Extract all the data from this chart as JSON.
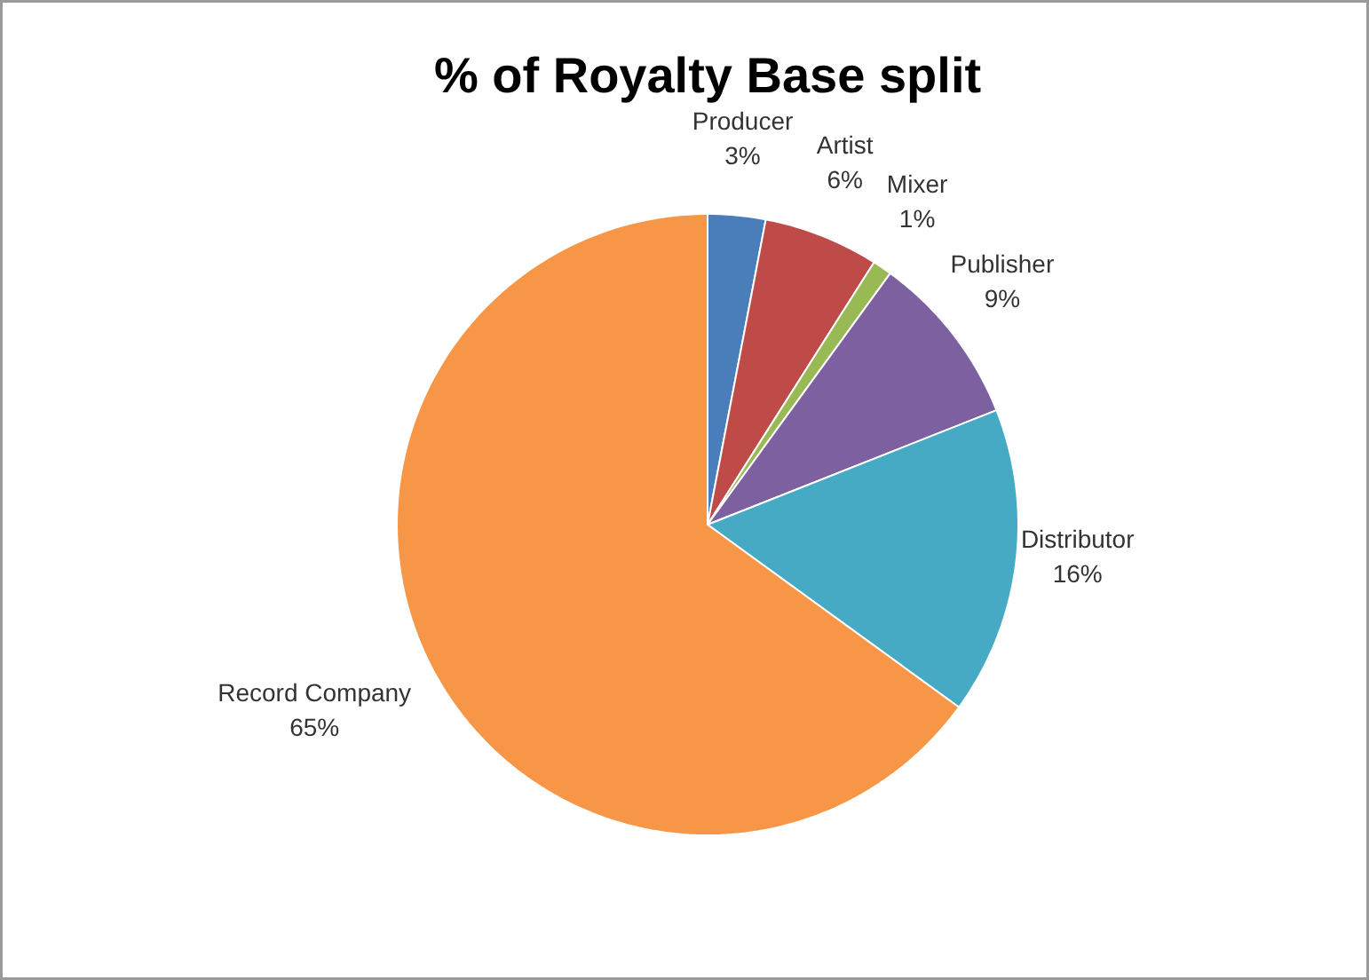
{
  "chart_data": {
    "type": "pie",
    "title": "% of Royalty Base split",
    "categories": [
      "Producer",
      "Artist",
      "Mixer",
      "Publisher",
      "Distributor",
      "Record Company"
    ],
    "values": [
      3,
      6,
      1,
      9,
      16,
      65
    ],
    "colors": [
      "#4a7ebb",
      "#be4b48",
      "#98b954",
      "#7d60a0",
      "#46aac5",
      "#f79646"
    ],
    "value_labels": [
      "3%",
      "6%",
      "1%",
      "9%",
      "16%",
      "65%"
    ],
    "legend": false
  }
}
